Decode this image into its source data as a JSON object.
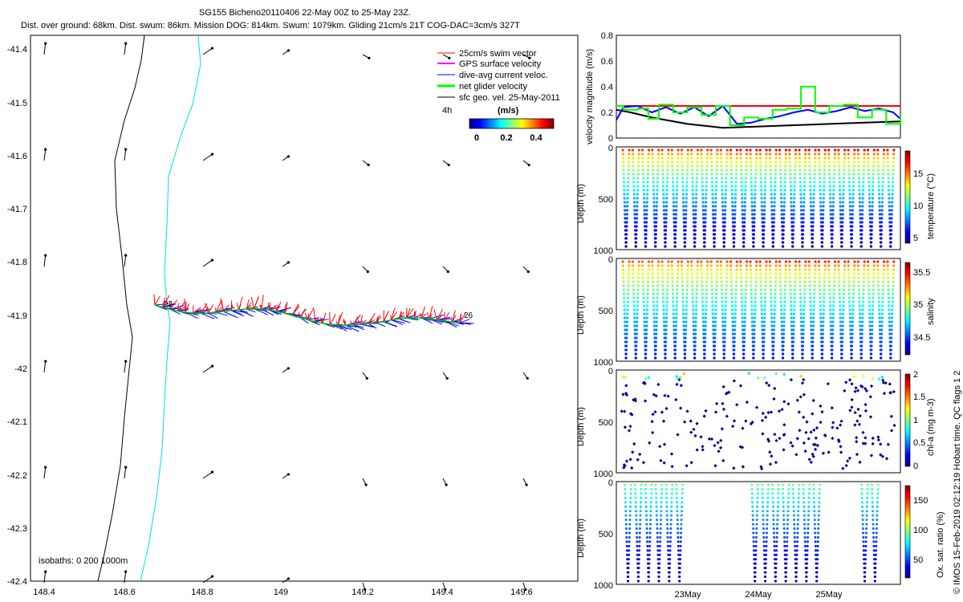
{
  "title": "SG155 Bicheno20110406 22-May 00Z to 25-May 23Z.",
  "subtitle": "Dist. over ground: 68km. Dist. swum: 86km. Mission DOG: 814km. Swum: 1079km. Gliding 21cm/s 21T COG-DAC=3cm/s 327T",
  "footer": "© IMOS 15-Feb-2019 02:12:19 Hobart time. QC flags 1  2",
  "map": {
    "legend": [
      {
        "label": "25cm/s swim vector",
        "color": "#ff0000"
      },
      {
        "label": "GPS surface velocity",
        "color": "#ff00ff"
      },
      {
        "label": "dive-avg current veloc.",
        "color": "#0000ff"
      },
      {
        "label": "net glider velocity",
        "color": "#00ff00"
      },
      {
        "label": "sfc geo. vel. 25-May-2011",
        "color": "#000000"
      }
    ],
    "scale_label": "4h",
    "colorbar_title": "(m/s)",
    "colorbar_ticks": [
      "0",
      "0.2",
      "0.4"
    ],
    "isobaths_label": "isobaths: 0   200  1000m",
    "start_label": "22",
    "end_label": "26",
    "x_ticks": [
      "148.4",
      "148.6",
      "148.8",
      "149",
      "149.2",
      "149.4",
      "149.6"
    ],
    "y_ticks": [
      "-41.4",
      "-41.5",
      "-41.6",
      "-41.7",
      "-41.8",
      "-41.9",
      "-42",
      "-42.1",
      "-42.2",
      "-42.3",
      "-42.4"
    ]
  },
  "date_ticks": [
    "23May",
    "24May",
    "25May"
  ],
  "chart_data": [
    {
      "type": "line",
      "title": "",
      "xlabel": "",
      "ylabel": "velocity magnitude (m/s)",
      "ylim": [
        0,
        0.8
      ],
      "y_ticks": [
        "0",
        "0.2",
        "0.4",
        "0.6",
        "0.8"
      ],
      "series": [
        {
          "color": "#ff0000",
          "x": [
            0,
            4
          ],
          "values": [
            0.25,
            0.25
          ]
        },
        {
          "color": "#000000",
          "x": [
            0,
            0.2,
            0.5,
            1.0,
            1.5,
            2.0,
            2.5,
            3.0,
            3.5,
            4.0
          ],
          "values": [
            0.22,
            0.2,
            0.16,
            0.11,
            0.08,
            0.09,
            0.1,
            0.11,
            0.12,
            0.13
          ]
        },
        {
          "color": "#0000ff",
          "x": [
            0,
            0.1,
            0.3,
            0.5,
            0.7,
            0.9,
            1.1,
            1.3,
            1.5,
            1.7,
            1.9,
            2.1,
            2.3,
            2.5,
            2.7,
            2.9,
            3.1,
            3.3,
            3.5,
            3.7,
            3.9,
            4.0
          ],
          "values": [
            0.14,
            0.24,
            0.25,
            0.2,
            0.24,
            0.19,
            0.24,
            0.17,
            0.25,
            0.11,
            0.12,
            0.15,
            0.17,
            0.2,
            0.22,
            0.19,
            0.21,
            0.24,
            0.21,
            0.23,
            0.2,
            0.15
          ]
        },
        {
          "color": "#00ff00",
          "x": [
            0,
            0.1,
            0.3,
            0.45,
            0.6,
            0.8,
            1.0,
            1.2,
            1.4,
            1.6,
            1.8,
            2.0,
            2.2,
            2.4,
            2.6,
            2.8,
            3.0,
            3.2,
            3.4,
            3.6,
            3.8,
            4.0
          ],
          "values": [
            0.25,
            0.22,
            0.23,
            0.15,
            0.26,
            0.2,
            0.24,
            0.18,
            0.25,
            0.1,
            0.16,
            0.15,
            0.22,
            0.23,
            0.4,
            0.2,
            0.25,
            0.26,
            0.16,
            0.22,
            0.11,
            0.17
          ]
        }
      ]
    },
    {
      "type": "scatter",
      "ylabel": "Depth (m)",
      "colorbar_label": "temperature (°C)",
      "ylim": [
        1000,
        0
      ],
      "y_ticks": [
        "0",
        "500",
        "1000"
      ],
      "colorbar_ticks": [
        "5",
        "10",
        "15"
      ],
      "colorbar_range": [
        4,
        18
      ],
      "profile_count": 28,
      "x_range": [
        0,
        4
      ],
      "surface_value": 15.5,
      "bottom_value": 4.5
    },
    {
      "type": "scatter",
      "ylabel": "Depth (m)",
      "colorbar_label": "salinity",
      "ylim": [
        1000,
        0
      ],
      "y_ticks": [
        "0",
        "500",
        "1000"
      ],
      "colorbar_ticks": [
        "34.5",
        "35",
        "35.5"
      ],
      "colorbar_range": [
        34.2,
        35.6
      ],
      "profile_count": 28,
      "x_range": [
        0,
        4
      ],
      "surface_value": 35.3,
      "bottom_value": 34.4
    },
    {
      "type": "scatter",
      "ylabel": "Depth (m)",
      "colorbar_label": "chl-a (mg m-3)",
      "ylim": [
        1000,
        0
      ],
      "y_ticks": [
        "0",
        "500",
        "1000"
      ],
      "colorbar_ticks": [
        "0",
        "0.5",
        "1",
        "1.5",
        "2"
      ],
      "colorbar_range": [
        0,
        2
      ],
      "x_range": [
        0,
        4
      ]
    },
    {
      "type": "scatter",
      "ylabel": "Depth (m)",
      "colorbar_label": "Ox. sat. ratio (%)",
      "ylim": [
        1000,
        0
      ],
      "y_ticks": [
        "0",
        "500",
        "1000"
      ],
      "colorbar_ticks": [
        "50",
        "100",
        "150"
      ],
      "colorbar_range": [
        20,
        175
      ],
      "profile_days": [
        0.1,
        0.25,
        0.4,
        0.55,
        0.7,
        0.85,
        1.95,
        2.1,
        2.25,
        2.4,
        2.55,
        2.7,
        2.85,
        3.55,
        3.7
      ],
      "x_range": [
        0,
        4
      ]
    }
  ]
}
